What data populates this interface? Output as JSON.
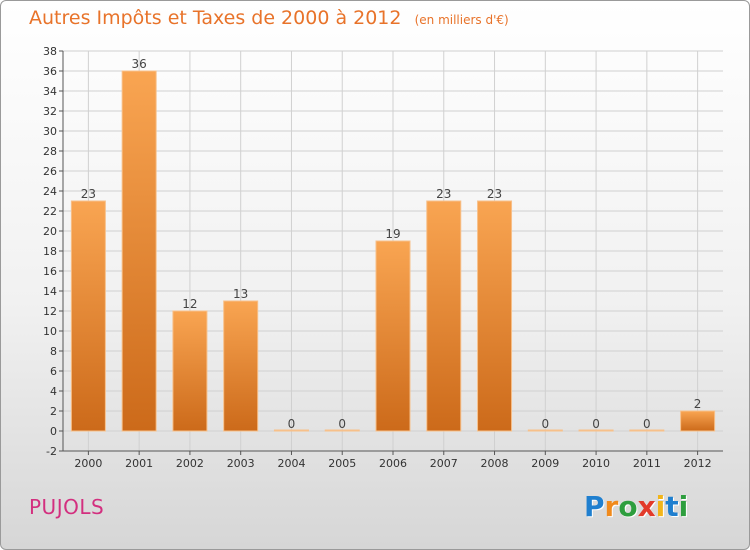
{
  "chart_data": {
    "type": "bar",
    "title": "Autres Impôts et Taxes de 2000 à 2012",
    "unit_note": "(en milliers d'€)",
    "categories": [
      "2000",
      "2001",
      "2002",
      "2003",
      "2004",
      "2005",
      "2006",
      "2007",
      "2008",
      "2009",
      "2010",
      "2011",
      "2012"
    ],
    "values": [
      23,
      36,
      12,
      13,
      0,
      0,
      19,
      23,
      23,
      0,
      0,
      0,
      2
    ],
    "value_labels": [
      "23",
      "36",
      "12",
      "13",
      "0",
      "0",
      "19",
      "23",
      "23",
      "0",
      "0",
      "0",
      "2"
    ],
    "ylim": [
      -2,
      38
    ],
    "yticks": [
      -2,
      0,
      2,
      4,
      6,
      8,
      10,
      12,
      14,
      16,
      18,
      20,
      22,
      24,
      26,
      28,
      30,
      32,
      34,
      36,
      38
    ],
    "grid": true,
    "xlabel": "",
    "ylabel": "",
    "bar_color_light": "#f9a552",
    "bar_color_dark": "#cc6a1a"
  },
  "place": "PUJOLS",
  "brand": {
    "letters": [
      "P",
      "r",
      "o",
      "x",
      "i",
      "t",
      "i"
    ],
    "colors": [
      "#1f7fcf",
      "#f08a1c",
      "#2e9e3e",
      "#e23a2a",
      "#f2b51a",
      "#1f7fcf",
      "#2e9e3e"
    ]
  },
  "colors": {
    "title": "#e8732a",
    "place": "#d32f7f"
  }
}
